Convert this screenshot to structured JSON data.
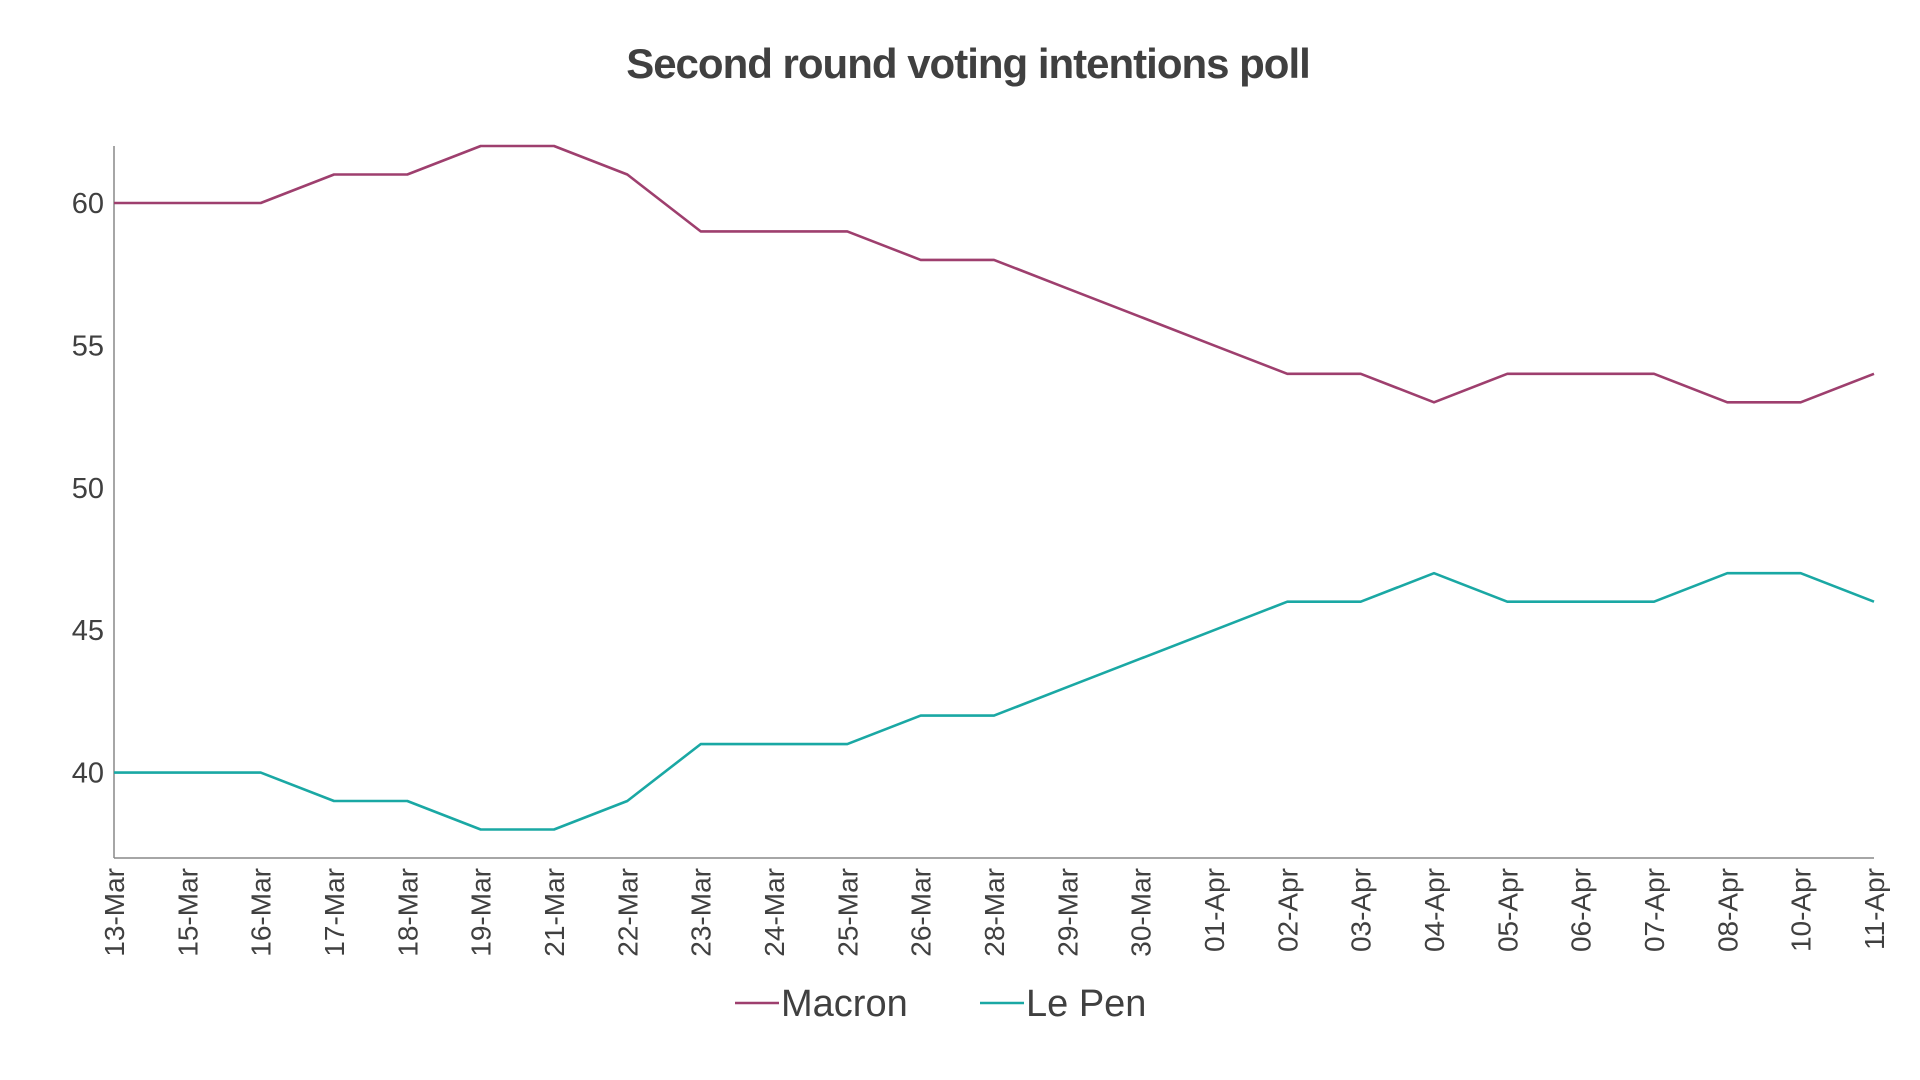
{
  "chart_data": {
    "type": "line",
    "title": "Second round voting intentions poll",
    "xlabel": "",
    "ylabel": "",
    "categories": [
      "13-Mar",
      "15-Mar",
      "16-Mar",
      "17-Mar",
      "18-Mar",
      "19-Mar",
      "21-Mar",
      "22-Mar",
      "23-Mar",
      "24-Mar",
      "25-Mar",
      "26-Mar",
      "28-Mar",
      "29-Mar",
      "30-Mar",
      "01-Apr",
      "02-Apr",
      "03-Apr",
      "04-Apr",
      "05-Apr",
      "06-Apr",
      "07-Apr",
      "08-Apr",
      "10-Apr",
      "11-Apr"
    ],
    "series": [
      {
        "name": "Macron",
        "color": "#9e3f6e",
        "values": [
          60,
          60,
          60,
          61,
          61,
          62,
          62,
          61,
          59,
          59,
          59,
          58,
          58,
          57,
          56,
          55,
          54,
          54,
          53,
          54,
          54,
          54,
          53,
          53,
          54
        ]
      },
      {
        "name": "Le Pen",
        "color": "#1aa8a4",
        "values": [
          40,
          40,
          40,
          39,
          39,
          38,
          38,
          39,
          41,
          41,
          41,
          42,
          42,
          43,
          44,
          45,
          46,
          46,
          47,
          46,
          46,
          46,
          47,
          47,
          46
        ]
      }
    ],
    "ylim": [
      37,
      62
    ],
    "yticks": [
      40,
      45,
      50,
      55,
      60
    ],
    "grid": false,
    "legend_position": "bottom"
  }
}
